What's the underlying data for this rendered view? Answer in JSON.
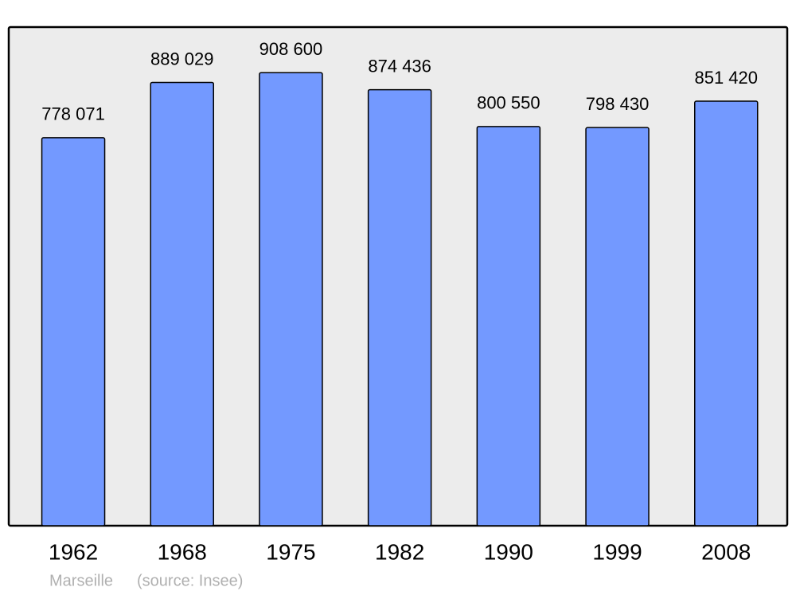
{
  "chart_data": {
    "type": "bar",
    "categories": [
      "1962",
      "1968",
      "1975",
      "1982",
      "1990",
      "1999",
      "2008"
    ],
    "values": [
      778071,
      889029,
      908600,
      874436,
      800550,
      798430,
      851420
    ],
    "value_labels": [
      "778 071",
      "889 029",
      "908 600",
      "874 436",
      "800 550",
      "798 430",
      "851 420"
    ],
    "color": "#7399ff",
    "ylim": [
      0,
      1000000
    ],
    "caption": "Marseille",
    "source": "(source: Insee)"
  }
}
